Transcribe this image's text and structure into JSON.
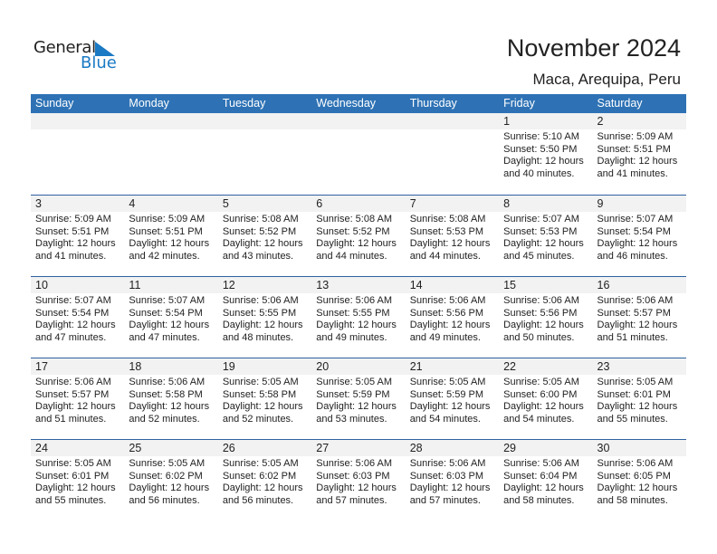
{
  "logo": {
    "line1": "General",
    "line2": "Blue"
  },
  "title": "November 2024",
  "location": "Maca, Arequipa, Peru",
  "colors": {
    "header": "#2e72b5",
    "day_band": "#f2f2f2",
    "logo_blue": "#1a7ac4"
  },
  "weekdays": [
    "Sunday",
    "Monday",
    "Tuesday",
    "Wednesday",
    "Thursday",
    "Friday",
    "Saturday"
  ],
  "weeks": [
    [
      null,
      null,
      null,
      null,
      null,
      {
        "day": "1",
        "sunrise": "Sunrise: 5:10 AM",
        "sunset": "Sunset: 5:50 PM",
        "daylight1": "Daylight: 12 hours",
        "daylight2": "and 40 minutes."
      },
      {
        "day": "2",
        "sunrise": "Sunrise: 5:09 AM",
        "sunset": "Sunset: 5:51 PM",
        "daylight1": "Daylight: 12 hours",
        "daylight2": "and 41 minutes."
      }
    ],
    [
      {
        "day": "3",
        "sunrise": "Sunrise: 5:09 AM",
        "sunset": "Sunset: 5:51 PM",
        "daylight1": "Daylight: 12 hours",
        "daylight2": "and 41 minutes."
      },
      {
        "day": "4",
        "sunrise": "Sunrise: 5:09 AM",
        "sunset": "Sunset: 5:51 PM",
        "daylight1": "Daylight: 12 hours",
        "daylight2": "and 42 minutes."
      },
      {
        "day": "5",
        "sunrise": "Sunrise: 5:08 AM",
        "sunset": "Sunset: 5:52 PM",
        "daylight1": "Daylight: 12 hours",
        "daylight2": "and 43 minutes."
      },
      {
        "day": "6",
        "sunrise": "Sunrise: 5:08 AM",
        "sunset": "Sunset: 5:52 PM",
        "daylight1": "Daylight: 12 hours",
        "daylight2": "and 44 minutes."
      },
      {
        "day": "7",
        "sunrise": "Sunrise: 5:08 AM",
        "sunset": "Sunset: 5:53 PM",
        "daylight1": "Daylight: 12 hours",
        "daylight2": "and 44 minutes."
      },
      {
        "day": "8",
        "sunrise": "Sunrise: 5:07 AM",
        "sunset": "Sunset: 5:53 PM",
        "daylight1": "Daylight: 12 hours",
        "daylight2": "and 45 minutes."
      },
      {
        "day": "9",
        "sunrise": "Sunrise: 5:07 AM",
        "sunset": "Sunset: 5:54 PM",
        "daylight1": "Daylight: 12 hours",
        "daylight2": "and 46 minutes."
      }
    ],
    [
      {
        "day": "10",
        "sunrise": "Sunrise: 5:07 AM",
        "sunset": "Sunset: 5:54 PM",
        "daylight1": "Daylight: 12 hours",
        "daylight2": "and 47 minutes."
      },
      {
        "day": "11",
        "sunrise": "Sunrise: 5:07 AM",
        "sunset": "Sunset: 5:54 PM",
        "daylight1": "Daylight: 12 hours",
        "daylight2": "and 47 minutes."
      },
      {
        "day": "12",
        "sunrise": "Sunrise: 5:06 AM",
        "sunset": "Sunset: 5:55 PM",
        "daylight1": "Daylight: 12 hours",
        "daylight2": "and 48 minutes."
      },
      {
        "day": "13",
        "sunrise": "Sunrise: 5:06 AM",
        "sunset": "Sunset: 5:55 PM",
        "daylight1": "Daylight: 12 hours",
        "daylight2": "and 49 minutes."
      },
      {
        "day": "14",
        "sunrise": "Sunrise: 5:06 AM",
        "sunset": "Sunset: 5:56 PM",
        "daylight1": "Daylight: 12 hours",
        "daylight2": "and 49 minutes."
      },
      {
        "day": "15",
        "sunrise": "Sunrise: 5:06 AM",
        "sunset": "Sunset: 5:56 PM",
        "daylight1": "Daylight: 12 hours",
        "daylight2": "and 50 minutes."
      },
      {
        "day": "16",
        "sunrise": "Sunrise: 5:06 AM",
        "sunset": "Sunset: 5:57 PM",
        "daylight1": "Daylight: 12 hours",
        "daylight2": "and 51 minutes."
      }
    ],
    [
      {
        "day": "17",
        "sunrise": "Sunrise: 5:06 AM",
        "sunset": "Sunset: 5:57 PM",
        "daylight1": "Daylight: 12 hours",
        "daylight2": "and 51 minutes."
      },
      {
        "day": "18",
        "sunrise": "Sunrise: 5:06 AM",
        "sunset": "Sunset: 5:58 PM",
        "daylight1": "Daylight: 12 hours",
        "daylight2": "and 52 minutes."
      },
      {
        "day": "19",
        "sunrise": "Sunrise: 5:05 AM",
        "sunset": "Sunset: 5:58 PM",
        "daylight1": "Daylight: 12 hours",
        "daylight2": "and 52 minutes."
      },
      {
        "day": "20",
        "sunrise": "Sunrise: 5:05 AM",
        "sunset": "Sunset: 5:59 PM",
        "daylight1": "Daylight: 12 hours",
        "daylight2": "and 53 minutes."
      },
      {
        "day": "21",
        "sunrise": "Sunrise: 5:05 AM",
        "sunset": "Sunset: 5:59 PM",
        "daylight1": "Daylight: 12 hours",
        "daylight2": "and 54 minutes."
      },
      {
        "day": "22",
        "sunrise": "Sunrise: 5:05 AM",
        "sunset": "Sunset: 6:00 PM",
        "daylight1": "Daylight: 12 hours",
        "daylight2": "and 54 minutes."
      },
      {
        "day": "23",
        "sunrise": "Sunrise: 5:05 AM",
        "sunset": "Sunset: 6:01 PM",
        "daylight1": "Daylight: 12 hours",
        "daylight2": "and 55 minutes."
      }
    ],
    [
      {
        "day": "24",
        "sunrise": "Sunrise: 5:05 AM",
        "sunset": "Sunset: 6:01 PM",
        "daylight1": "Daylight: 12 hours",
        "daylight2": "and 55 minutes."
      },
      {
        "day": "25",
        "sunrise": "Sunrise: 5:05 AM",
        "sunset": "Sunset: 6:02 PM",
        "daylight1": "Daylight: 12 hours",
        "daylight2": "and 56 minutes."
      },
      {
        "day": "26",
        "sunrise": "Sunrise: 5:05 AM",
        "sunset": "Sunset: 6:02 PM",
        "daylight1": "Daylight: 12 hours",
        "daylight2": "and 56 minutes."
      },
      {
        "day": "27",
        "sunrise": "Sunrise: 5:06 AM",
        "sunset": "Sunset: 6:03 PM",
        "daylight1": "Daylight: 12 hours",
        "daylight2": "and 57 minutes."
      },
      {
        "day": "28",
        "sunrise": "Sunrise: 5:06 AM",
        "sunset": "Sunset: 6:03 PM",
        "daylight1": "Daylight: 12 hours",
        "daylight2": "and 57 minutes."
      },
      {
        "day": "29",
        "sunrise": "Sunrise: 5:06 AM",
        "sunset": "Sunset: 6:04 PM",
        "daylight1": "Daylight: 12 hours",
        "daylight2": "and 58 minutes."
      },
      {
        "day": "30",
        "sunrise": "Sunrise: 5:06 AM",
        "sunset": "Sunset: 6:05 PM",
        "daylight1": "Daylight: 12 hours",
        "daylight2": "and 58 minutes."
      }
    ]
  ]
}
